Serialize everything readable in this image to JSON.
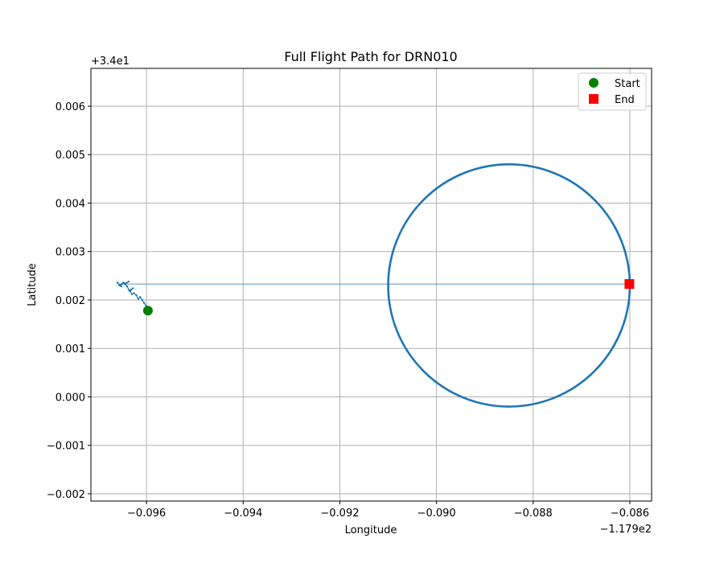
{
  "chart_data": {
    "type": "line",
    "title": "Full Flight Path for DRN010",
    "xlabel": "Longitude",
    "ylabel": "Latitude",
    "x_offset_label": "−1.179e2",
    "y_offset_label": "+3.4e1",
    "x_offset": -117.9,
    "y_offset": 34,
    "xlim": [
      -0.09715,
      -0.08555
    ],
    "ylim": [
      -0.00215,
      0.00678
    ],
    "x_ticks": [
      -0.096,
      -0.094,
      -0.092,
      -0.09,
      -0.088,
      -0.086
    ],
    "x_tick_labels": [
      "−0.096",
      "−0.094",
      "−0.092",
      "−0.090",
      "−0.088",
      "−0.086"
    ],
    "y_ticks": [
      -0.002,
      -0.001,
      0.0,
      0.001,
      0.002,
      0.003,
      0.004,
      0.005,
      0.006
    ],
    "y_tick_labels": [
      "−0.002",
      "−0.001",
      "0.000",
      "0.001",
      "0.002",
      "0.003",
      "0.004",
      "0.005",
      "0.006"
    ],
    "grid": true,
    "legend_position": "top-right",
    "path_color": "#1f77b4",
    "series": [
      {
        "role": "path",
        "x": [
          -0.09597,
          -0.09601,
          -0.09605,
          -0.09609,
          -0.09613,
          -0.09617,
          -0.09621,
          -0.09626,
          -0.0963,
          -0.09634,
          -0.09628,
          -0.09636,
          -0.0964,
          -0.09644,
          -0.09637,
          -0.09645,
          -0.09652,
          -0.09648,
          -0.09656,
          -0.09652,
          -0.0966
        ],
        "y": [
          0.00178,
          0.00188,
          0.00194,
          0.002,
          0.00206,
          0.00202,
          0.0021,
          0.00214,
          0.00212,
          0.00218,
          0.00224,
          0.0022,
          0.00228,
          0.00232,
          0.00238,
          0.00234,
          0.00232,
          0.00236,
          0.0023,
          0.00228,
          0.00236
        ]
      },
      {
        "role": "circle",
        "center_x": -0.0885,
        "center_y": 0.0023,
        "radius_x": 0.0025,
        "radius_y": 0.0025
      },
      {
        "role": "transit",
        "x": [
          -0.0966,
          -0.08601
        ],
        "y": [
          0.00233,
          0.00233
        ]
      }
    ],
    "legend": [
      {
        "label": "Start",
        "marker": "circle",
        "color": "#008000",
        "x": -0.09597,
        "y": 0.00178
      },
      {
        "label": "End",
        "marker": "square",
        "color": "#ff0000",
        "x": -0.08601,
        "y": 0.00233
      }
    ]
  }
}
